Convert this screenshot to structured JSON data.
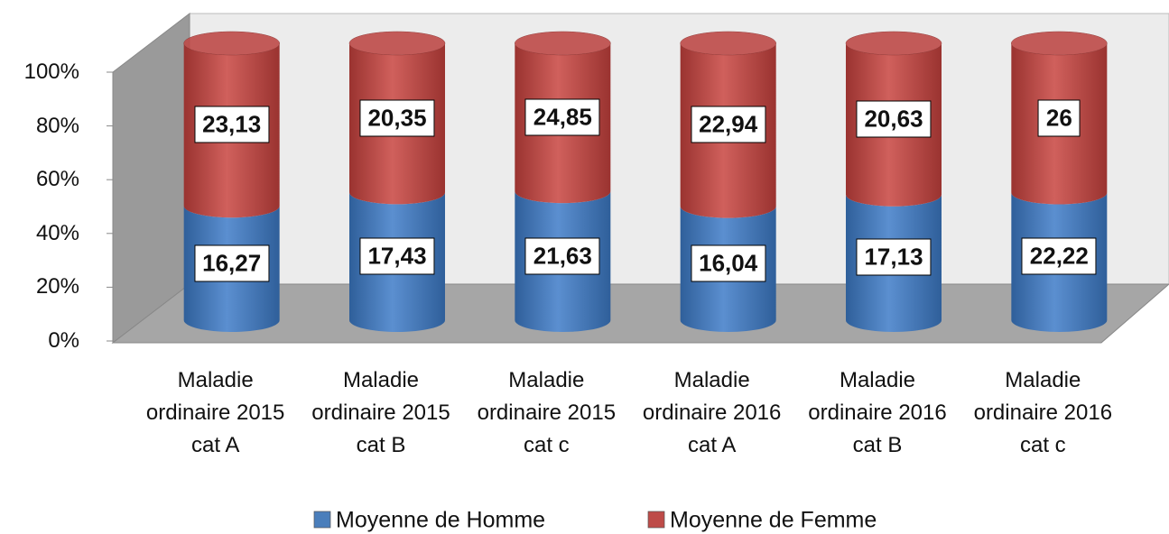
{
  "chart_data": {
    "type": "bar",
    "stacking": "percent",
    "shape": "cylinder",
    "categories": [
      "Maladie ordinaire 2015 cat A",
      "Maladie ordinaire 2015 cat B",
      "Maladie ordinaire 2015 cat c",
      "Maladie ordinaire 2016 cat A",
      "Maladie ordinaire 2016 cat B",
      "Maladie ordinaire 2016 cat c"
    ],
    "series": [
      {
        "name": "Moyenne de Homme",
        "color": "#4a7ebb",
        "values": [
          16.27,
          17.43,
          21.63,
          16.04,
          17.13,
          22.22
        ],
        "value_labels": [
          "16,27",
          "17,43",
          "21,63",
          "16,04",
          "17,13",
          "22,22"
        ]
      },
      {
        "name": "Moyenne de Femme",
        "color": "#be4b48",
        "values": [
          23.13,
          20.35,
          24.85,
          22.94,
          20.63,
          26
        ],
        "value_labels": [
          "23,13",
          "20,35",
          "24,85",
          "22,94",
          "20,63",
          "26"
        ]
      }
    ],
    "ylim": [
      0,
      100
    ],
    "yticks": [
      {
        "value": 0,
        "label": "0%"
      },
      {
        "value": 20,
        "label": "20%"
      },
      {
        "value": 40,
        "label": "40%"
      },
      {
        "value": 60,
        "label": "60%"
      },
      {
        "value": 80,
        "label": "80%"
      },
      {
        "value": 100,
        "label": "100%"
      }
    ],
    "legend": "bottom"
  }
}
